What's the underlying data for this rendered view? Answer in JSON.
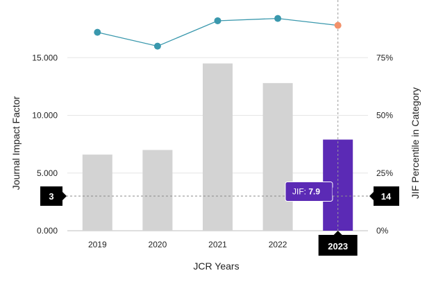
{
  "chart_data": {
    "type": "bar",
    "categories": [
      "2019",
      "2020",
      "2021",
      "2022",
      "2023"
    ],
    "series": [
      {
        "values": [
          6.6,
          7.0,
          14.5,
          12.8,
          7.9
        ]
      },
      {
        "values": [
          86,
          80,
          91,
          92,
          89
        ]
      }
    ],
    "xlabel": "JCR Years",
    "ylabel": "Journal Impact Factor",
    "y2label": "JIF Percentile in Category",
    "ylim": [
      0,
      20
    ],
    "y2lim": [
      0,
      100
    ],
    "yticks": [
      "0.000",
      "5.000",
      "10.000",
      "15.000"
    ],
    "y2ticks": [
      "0%",
      "25%",
      "50%",
      "75%"
    ],
    "highlight_index": 4,
    "bar_color": "#d3d3d3",
    "highlight_color": "#5b2ab5",
    "line_color": "#3a98ad",
    "highlight_point_color": "#f2916a",
    "reference_line_value": 3,
    "left_marker": "3",
    "right_marker": "14",
    "tooltip_label": "JIF:",
    "tooltip_value": "7.9",
    "selected_category": "2023",
    "grid": true
  }
}
